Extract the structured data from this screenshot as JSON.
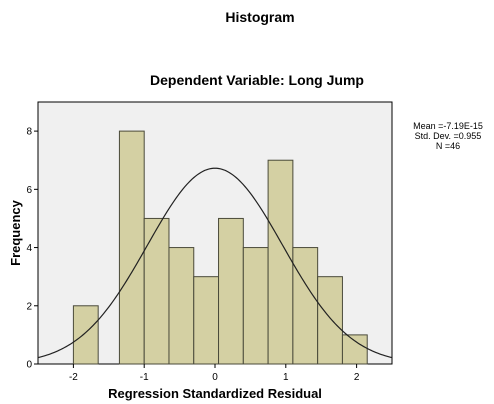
{
  "chart_data": {
    "type": "bar",
    "title": "Histogram",
    "subtitle": "Dependent Variable: Long Jump",
    "xlabel": "Regression Standardized Residual",
    "ylabel": "Frequency",
    "bin_width": 0.35,
    "bins": [
      {
        "x0": -2.0,
        "x1": -1.65,
        "value": 2
      },
      {
        "x0": -1.35,
        "x1": -1.0,
        "value": 8
      },
      {
        "x0": -1.0,
        "x1": -0.65,
        "value": 5
      },
      {
        "x0": -0.65,
        "x1": -0.3,
        "value": 4
      },
      {
        "x0": -0.3,
        "x1": 0.05,
        "value": 3
      },
      {
        "x0": 0.05,
        "x1": 0.4,
        "value": 5
      },
      {
        "x0": 0.4,
        "x1": 0.75,
        "value": 4
      },
      {
        "x0": 0.75,
        "x1": 1.1,
        "value": 7
      },
      {
        "x0": 1.1,
        "x1": 1.45,
        "value": 4
      },
      {
        "x0": 1.45,
        "x1": 1.8,
        "value": 3
      },
      {
        "x0": 1.8,
        "x1": 2.15,
        "value": 1
      }
    ],
    "xlim": [
      -2.5,
      2.5
    ],
    "ylim": [
      0,
      9
    ],
    "xticks": [
      -2,
      -1,
      0,
      1,
      2
    ],
    "yticks": [
      0,
      2,
      4,
      6,
      8
    ],
    "normal_curve": {
      "mean": -7.19e-15,
      "sd": 0.955,
      "n": 46
    },
    "stats": {
      "mean_label": "Mean =-7.19E-15",
      "sd_label": "Std. Dev. =0.955",
      "n_label": "N =46"
    },
    "grid": false,
    "legend": "none",
    "colors": {
      "bar_fill": "#d4d0a3",
      "bar_stroke": "#4a4a3a",
      "plot_background": "#f0f0f0",
      "curve": "#222222"
    }
  }
}
